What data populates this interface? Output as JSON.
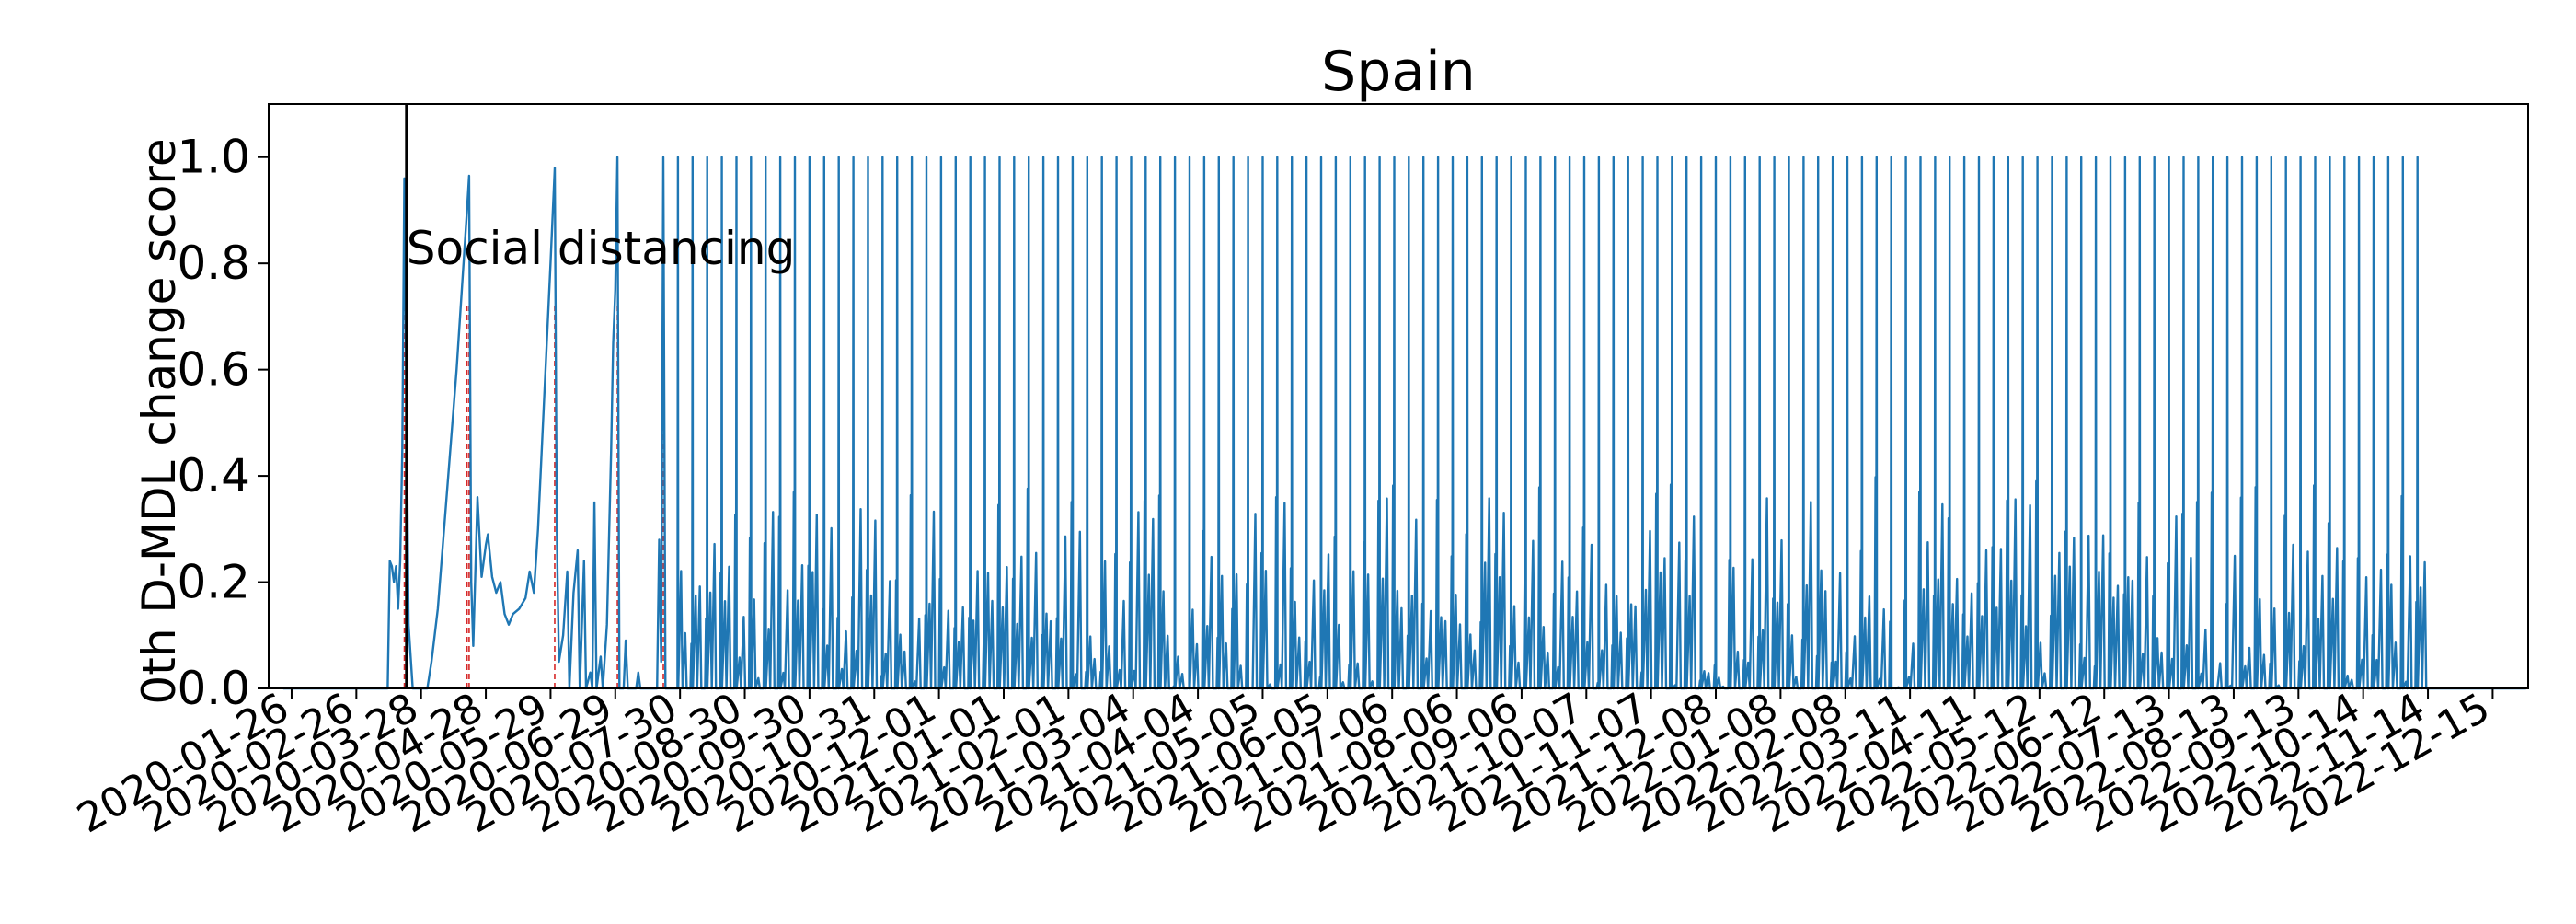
{
  "chart_data": {
    "type": "line",
    "title": "Spain",
    "xlabel": "",
    "ylabel": "0th D-MDL change score",
    "x_type": "date",
    "xlim": [
      "2020-01-15",
      "2023-01-01"
    ],
    "ylim": [
      0,
      1.1
    ],
    "y_ticks": [
      0.0,
      0.2,
      0.4,
      0.6,
      0.8,
      1.0
    ],
    "y_tick_labels": [
      "0.0",
      "0.2",
      "0.4",
      "0.6",
      "0.8",
      "1.0"
    ],
    "x_ticks": [
      "2020-01-26",
      "2020-02-26",
      "2020-03-28",
      "2020-04-28",
      "2020-05-29",
      "2020-06-29",
      "2020-07-30",
      "2020-08-30",
      "2020-09-30",
      "2020-10-31",
      "2020-12-01",
      "2021-01-01",
      "2021-02-01",
      "2021-03-04",
      "2021-04-04",
      "2021-05-05",
      "2021-06-05",
      "2021-07-06",
      "2021-08-06",
      "2021-09-06",
      "2021-10-07",
      "2021-11-07",
      "2021-12-08",
      "2022-01-08",
      "2022-02-08",
      "2022-03-11",
      "2022-04-11",
      "2022-05-12",
      "2022-06-12",
      "2022-07-13",
      "2022-08-13",
      "2022-09-13",
      "2022-10-14",
      "2022-11-14",
      "2022-12-15"
    ],
    "grid": false,
    "legend": "none",
    "series": [
      {
        "color": "#1f77b4",
        "points": [
          [
            "2020-01-22",
            0.0
          ],
          [
            "2020-03-12",
            0.0
          ],
          [
            "2020-03-13",
            0.24
          ],
          [
            "2020-03-14",
            0.23
          ],
          [
            "2020-03-15",
            0.2
          ],
          [
            "2020-03-16",
            0.23
          ],
          [
            "2020-03-17",
            0.15
          ],
          [
            "2020-03-18",
            0.24
          ],
          [
            "2020-03-19",
            0.45
          ],
          [
            "2020-03-20",
            0.96
          ],
          [
            "2020-03-21",
            0.55
          ],
          [
            "2020-03-22",
            0.12
          ],
          [
            "2020-03-24",
            0.0
          ],
          [
            "2020-03-31",
            0.0
          ],
          [
            "2020-04-02",
            0.05
          ],
          [
            "2020-04-05",
            0.15
          ],
          [
            "2020-04-08",
            0.3
          ],
          [
            "2020-04-11",
            0.45
          ],
          [
            "2020-04-14",
            0.6
          ],
          [
            "2020-04-17",
            0.78
          ],
          [
            "2020-04-19",
            0.9
          ],
          [
            "2020-04-20",
            0.965
          ],
          [
            "2020-04-21",
            0.2
          ],
          [
            "2020-04-22",
            0.08
          ],
          [
            "2020-04-24",
            0.36
          ],
          [
            "2020-04-26",
            0.21
          ],
          [
            "2020-04-28",
            0.27
          ],
          [
            "2020-04-29",
            0.29
          ],
          [
            "2020-05-01",
            0.21
          ],
          [
            "2020-05-03",
            0.18
          ],
          [
            "2020-05-05",
            0.2
          ],
          [
            "2020-05-07",
            0.14
          ],
          [
            "2020-05-09",
            0.12
          ],
          [
            "2020-05-11",
            0.14
          ],
          [
            "2020-05-14",
            0.15
          ],
          [
            "2020-05-17",
            0.17
          ],
          [
            "2020-05-19",
            0.22
          ],
          [
            "2020-05-21",
            0.18
          ],
          [
            "2020-05-23",
            0.3
          ],
          [
            "2020-05-26",
            0.55
          ],
          [
            "2020-05-29",
            0.8
          ],
          [
            "2020-05-31",
            0.98
          ],
          [
            "2020-06-01",
            0.3
          ],
          [
            "2020-06-02",
            0.05
          ],
          [
            "2020-06-04",
            0.1
          ],
          [
            "2020-06-06",
            0.22
          ],
          [
            "2020-06-07",
            0.0
          ],
          [
            "2020-06-09",
            0.18
          ],
          [
            "2020-06-11",
            0.26
          ],
          [
            "2020-06-12",
            0.0
          ],
          [
            "2020-06-14",
            0.24
          ],
          [
            "2020-06-15",
            0.0
          ],
          [
            "2020-06-17",
            0.03
          ],
          [
            "2020-06-18",
            0.0
          ],
          [
            "2020-06-19",
            0.35
          ],
          [
            "2020-06-20",
            0.0
          ],
          [
            "2020-06-22",
            0.06
          ],
          [
            "2020-06-23",
            0.0
          ],
          [
            "2020-06-25",
            0.12
          ],
          [
            "2020-06-27",
            0.45
          ],
          [
            "2020-06-28",
            0.65
          ],
          [
            "2020-06-29",
            0.75
          ],
          [
            "2020-06-30",
            1.0
          ],
          [
            "2020-07-01",
            0.0
          ],
          [
            "2020-07-03",
            0.0
          ],
          [
            "2020-07-04",
            0.09
          ],
          [
            "2020-07-05",
            0.0
          ],
          [
            "2020-07-09",
            0.0
          ],
          [
            "2020-07-10",
            0.03
          ],
          [
            "2020-07-11",
            0.0
          ],
          [
            "2020-07-19",
            0.0
          ],
          [
            "2020-07-20",
            0.28
          ],
          [
            "2020-07-21",
            0.05
          ],
          [
            "2020-07-22",
            1.0
          ],
          [
            "2020-07-23",
            0.0
          ],
          [
            "2022-12-31",
            0.0
          ]
        ]
      }
    ],
    "regular_spikes": {
      "start": "2020-07-29",
      "end": "2022-11-14",
      "interval_days": 7,
      "peak": 1.0,
      "background_max": 0.4
    },
    "vertical_line": {
      "x": "2020-03-21",
      "label": "Social distancing"
    }
  }
}
